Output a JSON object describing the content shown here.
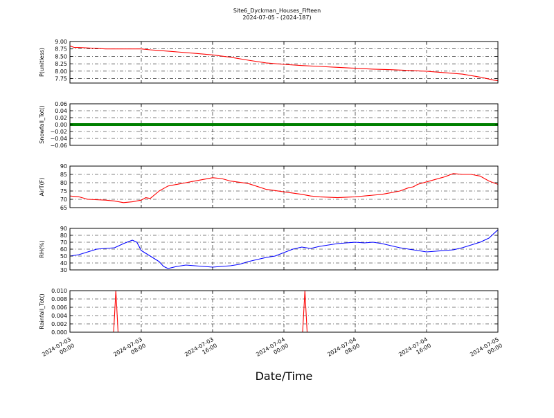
{
  "figure": {
    "title": "Site6_Dyckman_Houses_Fifteen",
    "subtitle": "2024-07-05 - (2024-187)",
    "xlabel": "Date/Time",
    "background": "#ffffff"
  },
  "chart_data": [
    {
      "type": "line",
      "ylabel": "P(unitless)",
      "ylim": [
        7.6,
        9.0
      ],
      "yticks": [
        "9.00",
        "8.75",
        "8.50",
        "8.25",
        "8.00",
        "7.75"
      ],
      "ytick_values": [
        9.0,
        8.75,
        8.5,
        8.25,
        8.0,
        7.75
      ],
      "grid": true,
      "series": [
        {
          "color": "#ff0000",
          "x": [
            0,
            0.5,
            1,
            3,
            4,
            8,
            9,
            10,
            12,
            14,
            16,
            18,
            20,
            22,
            24,
            26,
            28,
            30,
            32,
            34,
            36,
            40,
            44,
            46,
            47.5,
            48
          ],
          "y": [
            8.85,
            8.8,
            8.8,
            8.77,
            8.75,
            8.75,
            8.72,
            8.7,
            8.65,
            8.6,
            8.55,
            8.47,
            8.37,
            8.28,
            8.23,
            8.19,
            8.16,
            8.13,
            8.1,
            8.07,
            8.05,
            8.0,
            7.9,
            7.8,
            7.7,
            7.68
          ]
        }
      ]
    },
    {
      "type": "line",
      "ylabel": "Snowfall_Tot()",
      "ylim": [
        -0.06,
        0.06
      ],
      "yticks": [
        "0.06",
        "0.04",
        "0.02",
        "0.00",
        "−0.02",
        "−0.04",
        "−0.06"
      ],
      "ytick_values": [
        0.06,
        0.04,
        0.02,
        0.0,
        -0.02,
        -0.04,
        -0.06
      ],
      "grid": true,
      "series": [
        {
          "color": "#008000",
          "x": [
            0,
            48
          ],
          "y": [
            0,
            0
          ]
        }
      ]
    },
    {
      "type": "line",
      "ylabel": "AirT(F)",
      "ylim": [
        65,
        90
      ],
      "yticks": [
        "90",
        "85",
        "80",
        "75",
        "70",
        "65"
      ],
      "ytick_values": [
        90,
        85,
        80,
        75,
        70,
        65
      ],
      "grid": true,
      "series": [
        {
          "color": "#ff0000",
          "x": [
            0,
            1,
            2,
            4,
            5,
            6,
            7,
            8,
            8.5,
            9,
            10,
            11,
            12,
            13,
            14,
            15,
            16,
            17,
            18,
            20,
            22,
            24,
            26,
            27,
            28,
            30,
            32,
            33,
            34,
            35,
            36,
            37,
            38,
            38.5,
            39,
            40,
            41,
            42,
            43,
            44,
            45,
            46,
            47,
            48
          ],
          "y": [
            72,
            71.5,
            70,
            69.5,
            69,
            68,
            68.5,
            69.5,
            71,
            70.5,
            75,
            78,
            79,
            80,
            81,
            82,
            83,
            82.5,
            81,
            79.5,
            76,
            74.5,
            73,
            72,
            71.5,
            71,
            71.5,
            72,
            72.5,
            73,
            74,
            75,
            77,
            77.5,
            79,
            80.5,
            82,
            83.5,
            85.5,
            85,
            85,
            84,
            81,
            79
          ]
        }
      ]
    },
    {
      "type": "line",
      "ylabel": "RH(%)",
      "ylim": [
        30,
        90
      ],
      "yticks": [
        "90",
        "80",
        "70",
        "60",
        "50",
        "40",
        "30"
      ],
      "ytick_values": [
        90,
        80,
        70,
        60,
        50,
        40,
        30
      ],
      "grid": true,
      "series": [
        {
          "color": "#0000ff",
          "x": [
            0,
            1,
            2,
            3,
            4,
            5,
            6,
            7,
            7.5,
            8,
            9,
            10,
            10.5,
            11,
            12,
            13,
            14,
            15,
            16,
            17,
            18,
            19,
            20,
            21,
            22,
            23,
            24,
            25,
            26,
            27,
            28,
            29,
            30,
            31,
            32,
            33,
            34,
            35,
            36,
            37,
            38,
            39,
            40,
            41,
            42,
            43,
            44,
            45,
            46,
            47,
            48
          ],
          "y": [
            50,
            52,
            56,
            60,
            61,
            62,
            68,
            73,
            70,
            58,
            50,
            42,
            35,
            32,
            35,
            37,
            36,
            35,
            34,
            35,
            36,
            38,
            42,
            45,
            48,
            50,
            55,
            60,
            63,
            61,
            64,
            66,
            68,
            69,
            70,
            69,
            70,
            68,
            65,
            62,
            60,
            58,
            56,
            57,
            58,
            59,
            62,
            66,
            70,
            76,
            88
          ]
        }
      ]
    },
    {
      "type": "line",
      "ylabel": "Rainfall_Tot()",
      "ylim": [
        0,
        0.01
      ],
      "yticks": [
        "0.010",
        "0.008",
        "0.006",
        "0.004",
        "0.002",
        "0.000"
      ],
      "ytick_values": [
        0.01,
        0.008,
        0.006,
        0.004,
        0.002,
        0.0
      ],
      "grid": true,
      "series": [
        {
          "color": "#ff0000",
          "x": [
            0,
            4.9,
            5.15,
            5.4,
            26.1,
            26.35,
            26.6,
            48
          ],
          "y": [
            0,
            0,
            0.01,
            0,
            0,
            0.01,
            0,
            0
          ]
        }
      ]
    }
  ],
  "x_axis": {
    "range_hours": [
      0,
      48
    ],
    "tick_hours": [
      0,
      8,
      16,
      24,
      32,
      40,
      48
    ],
    "tick_labels": [
      [
        "2024-07-03",
        "00:00"
      ],
      [
        "2024-07-03",
        "08:00"
      ],
      [
        "2024-07-03",
        "16:00"
      ],
      [
        "2024-07-04",
        "00:00"
      ],
      [
        "2024-07-04",
        "08:00"
      ],
      [
        "2024-07-04",
        "16:00"
      ],
      [
        "2024-07-05",
        "00:00"
      ]
    ]
  }
}
